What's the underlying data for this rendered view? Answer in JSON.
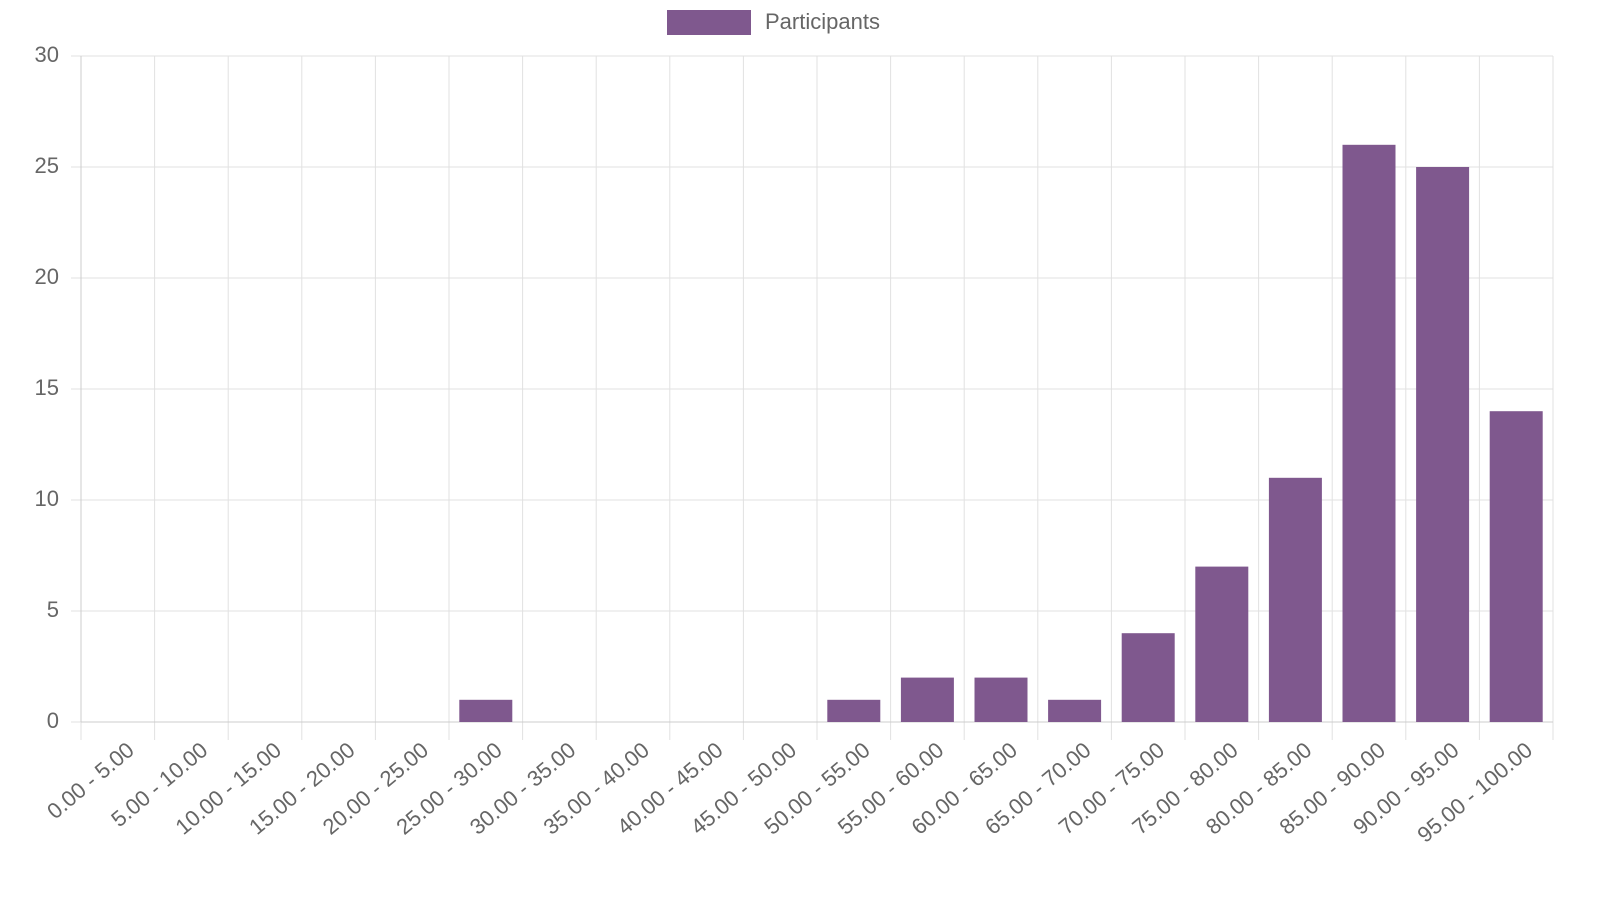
{
  "chart_data": {
    "type": "bar",
    "categories": [
      "0.00 - 5.00",
      "5.00 - 10.00",
      "10.00 - 15.00",
      "15.00 - 20.00",
      "20.00 - 25.00",
      "25.00 - 30.00",
      "30.00 - 35.00",
      "35.00 - 40.00",
      "40.00 - 45.00",
      "45.00 - 50.00",
      "50.00 - 55.00",
      "55.00 - 60.00",
      "60.00 - 65.00",
      "65.00 - 70.00",
      "70.00 - 75.00",
      "75.00 - 80.00",
      "80.00 - 85.00",
      "85.00 - 90.00",
      "90.00 - 95.00",
      "95.00 - 100.00"
    ],
    "series": [
      {
        "name": "Participants",
        "color": "#7f588e",
        "values": [
          0,
          0,
          0,
          0,
          0,
          1,
          0,
          0,
          0,
          0,
          1,
          2,
          2,
          1,
          4,
          7,
          11,
          26,
          25,
          14
        ]
      }
    ],
    "ylim": [
      0,
      30
    ],
    "yticks": [
      0,
      5,
      10,
      15,
      20,
      25,
      30
    ],
    "grid": true,
    "legend": "top"
  }
}
